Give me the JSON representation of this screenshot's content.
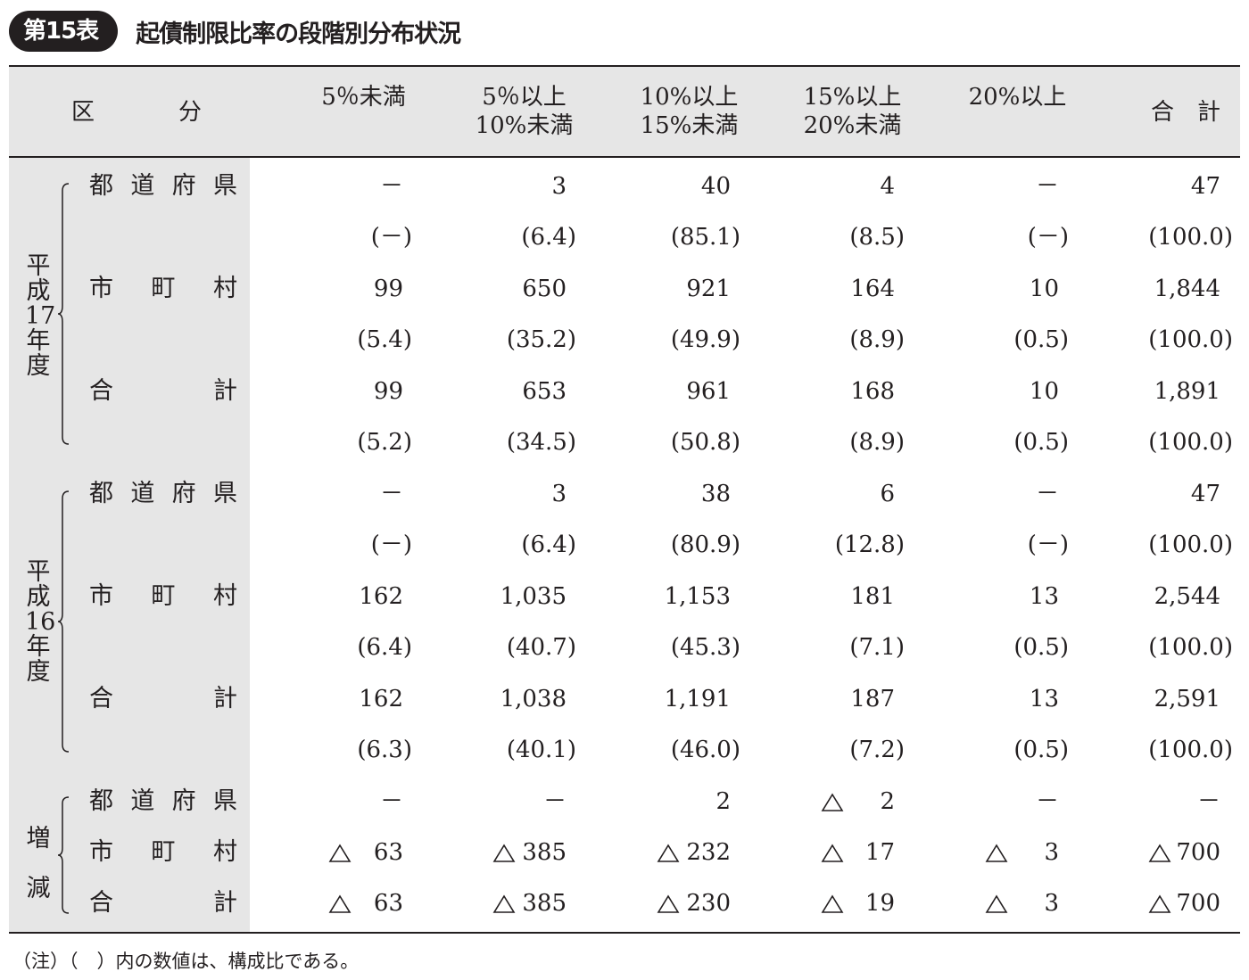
{
  "title": {
    "badge": "第15表",
    "text": "起債制限比率の段階別分布状況"
  },
  "header": {
    "category": [
      "区",
      "分"
    ],
    "columns": [
      {
        "line1": "5％未満",
        "line2": ""
      },
      {
        "line1": "5％以上",
        "line2": "10%未満"
      },
      {
        "line1": "10%以上",
        "line2": "15%未満"
      },
      {
        "line1": "15%以上",
        "line2": "20%未満"
      },
      {
        "line1": "20%以上",
        "line2": ""
      },
      {
        "line1": "合　計",
        "line2": ""
      }
    ]
  },
  "groups": [
    {
      "label": [
        "平",
        "成",
        "17",
        "年",
        "度"
      ],
      "rows": [
        {
          "label": [
            "都",
            "道",
            "府",
            "県"
          ],
          "values": [
            "－",
            "3",
            "40",
            "4",
            "－",
            "47"
          ],
          "shares": [
            "(－)",
            "(6.4)",
            "(85.1)",
            "(8.5)",
            "(－)",
            "(100.0)"
          ]
        },
        {
          "label": [
            "市",
            "町",
            "村"
          ],
          "values": [
            "99",
            "650",
            "921",
            "164",
            "10",
            "1,844"
          ],
          "shares": [
            "(5.4)",
            "(35.2)",
            "(49.9)",
            "(8.9)",
            "(0.5)",
            "(100.0)"
          ]
        },
        {
          "label": [
            "合",
            "計"
          ],
          "values": [
            "99",
            "653",
            "961",
            "168",
            "10",
            "1,891"
          ],
          "shares": [
            "(5.2)",
            "(34.5)",
            "(50.8)",
            "(8.9)",
            "(0.5)",
            "(100.0)"
          ]
        }
      ]
    },
    {
      "label": [
        "平",
        "成",
        "16",
        "年",
        "度"
      ],
      "rows": [
        {
          "label": [
            "都",
            "道",
            "府",
            "県"
          ],
          "values": [
            "－",
            "3",
            "38",
            "6",
            "－",
            "47"
          ],
          "shares": [
            "(－)",
            "(6.4)",
            "(80.9)",
            "(12.8)",
            "(－)",
            "(100.0)"
          ]
        },
        {
          "label": [
            "市",
            "町",
            "村"
          ],
          "values": [
            "162",
            "1,035",
            "1,153",
            "181",
            "13",
            "2,544"
          ],
          "shares": [
            "(6.4)",
            "(40.7)",
            "(45.3)",
            "(7.1)",
            "(0.5)",
            "(100.0)"
          ]
        },
        {
          "label": [
            "合",
            "計"
          ],
          "values": [
            "162",
            "1,038",
            "1,191",
            "187",
            "13",
            "2,591"
          ],
          "shares": [
            "(6.3)",
            "(40.1)",
            "(46.0)",
            "(7.2)",
            "(0.5)",
            "(100.0)"
          ]
        }
      ]
    }
  ],
  "change": {
    "label": [
      "増",
      "減"
    ],
    "rows": [
      {
        "label": [
          "都",
          "道",
          "府",
          "県"
        ],
        "values": [
          "－",
          "－",
          "2",
          "2",
          "－",
          "－"
        ],
        "decrease": [
          false,
          false,
          false,
          true,
          false,
          false
        ]
      },
      {
        "label": [
          "市",
          "町",
          "村"
        ],
        "values": [
          "63",
          "385",
          "232",
          "17",
          "3",
          "700"
        ],
        "decrease": [
          true,
          true,
          true,
          true,
          true,
          true
        ]
      },
      {
        "label": [
          "合",
          "計"
        ],
        "values": [
          "63",
          "385",
          "230",
          "19",
          "3",
          "700"
        ],
        "decrease": [
          true,
          true,
          true,
          true,
          true,
          true
        ]
      }
    ]
  },
  "note": "（注）（　）内の数値は、構成比である。"
}
